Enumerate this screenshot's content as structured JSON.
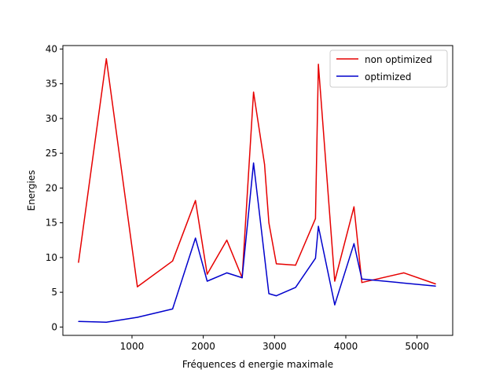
{
  "chart_data": {
    "type": "line",
    "title": "",
    "xlabel": "Fréquences d energie maximale",
    "ylabel": "Energies",
    "xlim": [
      30,
      5500
    ],
    "ylim": [
      -1.2,
      40.5
    ],
    "xticks": [
      1000,
      2000,
      3000,
      4000,
      5000
    ],
    "yticks": [
      0,
      5,
      10,
      15,
      20,
      25,
      30,
      35,
      40
    ],
    "xtick_labels": [
      "1000",
      "2000",
      "3000",
      "4000",
      "5000"
    ],
    "ytick_labels": [
      "0",
      "5",
      "10",
      "15",
      "20",
      "25",
      "30",
      "35",
      "40"
    ],
    "grid": false,
    "legend": "top-right",
    "series": [
      {
        "name": "non optimized",
        "color": "#e60000",
        "x": [
          250,
          640,
          1075,
          1570,
          1890,
          2055,
          2330,
          2545,
          2705,
          2860,
          2920,
          3025,
          3295,
          3575,
          3615,
          3845,
          4115,
          4225,
          4815,
          5260
        ],
        "y": [
          9.3,
          38.6,
          5.8,
          9.5,
          18.2,
          7.6,
          12.5,
          7.1,
          33.8,
          23.4,
          15.0,
          9.1,
          8.9,
          15.6,
          37.8,
          6.6,
          17.3,
          6.4,
          7.8,
          6.2
        ]
      },
      {
        "name": "optimized",
        "color": "#0000cc",
        "x": [
          250,
          640,
          1075,
          1570,
          1890,
          2055,
          2330,
          2545,
          2705,
          2920,
          3025,
          3295,
          3575,
          3615,
          3845,
          4115,
          4225,
          5260
        ],
        "y": [
          0.8,
          0.7,
          1.4,
          2.6,
          12.8,
          6.6,
          7.8,
          7.1,
          23.6,
          4.8,
          4.5,
          5.7,
          9.9,
          14.5,
          3.2,
          12.0,
          6.9,
          5.9
        ]
      }
    ]
  }
}
